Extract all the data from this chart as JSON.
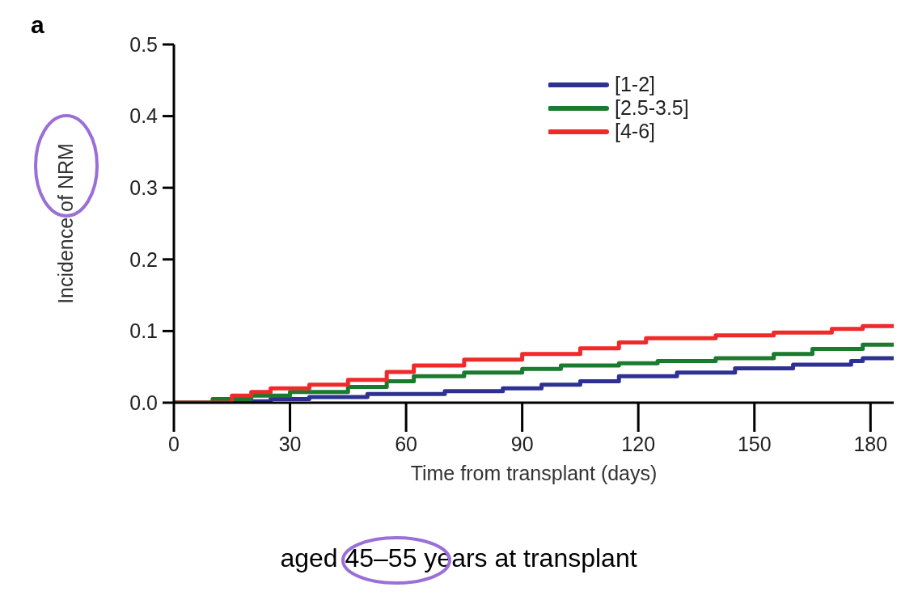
{
  "chart_data": {
    "type": "step",
    "title": "a",
    "xlabel": "Time from transplant (days)",
    "ylabel": "Incidence of NRM",
    "annotations": [
      "aged 45–55 years at transplant"
    ],
    "xlim": [
      0,
      186
    ],
    "xticks": [
      0,
      30,
      60,
      90,
      120,
      150,
      180
    ],
    "ylim": [
      0,
      0.5
    ],
    "yticks": [
      {
        "value": 0,
        "label": "0.0"
      },
      0.1,
      0.2,
      0.3,
      0.4,
      0.5
    ],
    "legend": "top right",
    "grid": false,
    "marker": "none",
    "line_style": "solid",
    "series": [
      {
        "name": "[1-2]",
        "color": "#2e3192",
        "x": [
          0,
          15,
          25,
          35,
          50,
          70,
          85,
          95,
          105,
          115,
          130,
          145,
          160,
          175,
          178,
          186
        ],
        "values": [
          0,
          0.002,
          0.005,
          0.008,
          0.012,
          0.016,
          0.02,
          0.025,
          0.03,
          0.037,
          0.042,
          0.048,
          0.053,
          0.058,
          0.062,
          0.062
        ]
      },
      {
        "name": "[2.5-3.5]",
        "color": "#1a7a2e",
        "x": [
          0,
          10,
          20,
          30,
          45,
          55,
          62,
          75,
          90,
          100,
          115,
          125,
          140,
          155,
          165,
          178,
          186
        ],
        "values": [
          0,
          0.005,
          0.01,
          0.015,
          0.022,
          0.03,
          0.037,
          0.042,
          0.047,
          0.052,
          0.055,
          0.058,
          0.062,
          0.068,
          0.075,
          0.081,
          0.081
        ]
      },
      {
        "name": "[4-6]",
        "color": "#ee2a2a",
        "x": [
          0,
          8,
          15,
          20,
          25,
          35,
          45,
          55,
          62,
          75,
          90,
          105,
          115,
          122,
          140,
          155,
          170,
          178,
          186
        ],
        "values": [
          0,
          0,
          0.01,
          0.015,
          0.02,
          0.025,
          0.032,
          0.043,
          0.052,
          0.06,
          0.068,
          0.076,
          0.084,
          0.09,
          0.094,
          0.098,
          0.103,
          0.107,
          0.107
        ]
      }
    ]
  }
}
